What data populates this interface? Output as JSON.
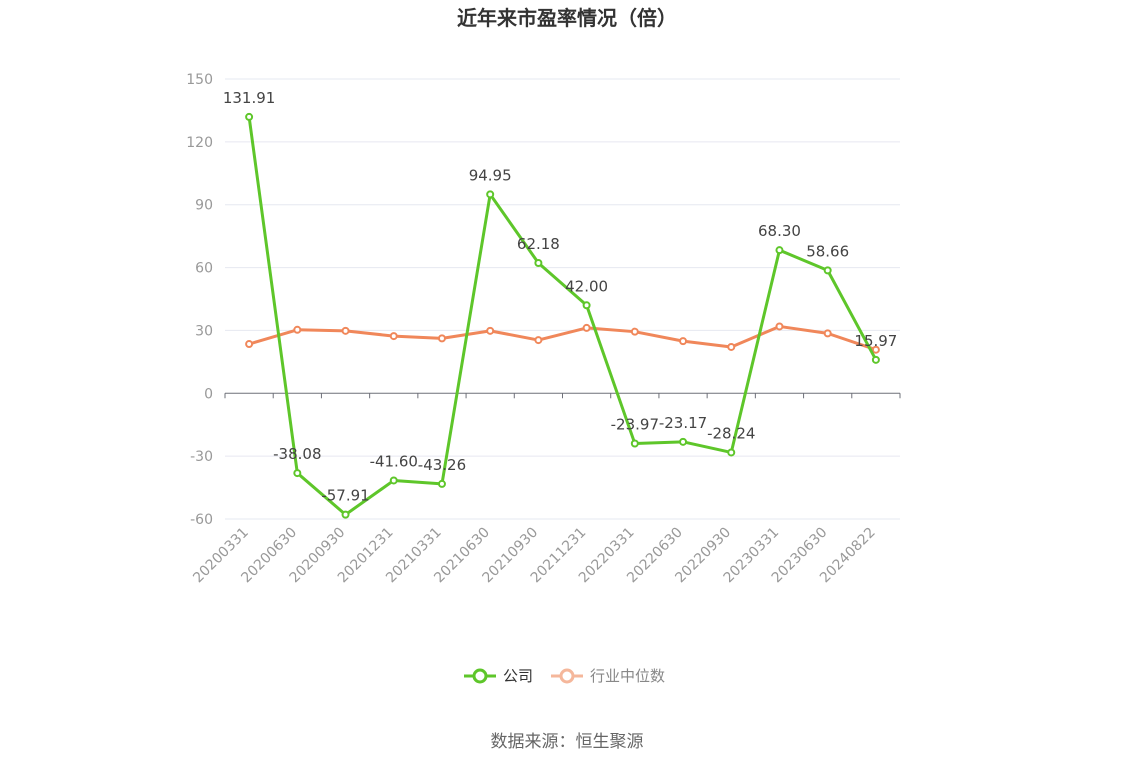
{
  "title": "近年来市盈率情况（倍）",
  "source": "数据来源：恒生聚源",
  "chart_data": {
    "type": "line",
    "title": "近年来市盈率情况（倍）",
    "categories": [
      "20200331",
      "20200630",
      "20200930",
      "20201231",
      "20210331",
      "20210630",
      "20210930",
      "20211231",
      "20220331",
      "20220630",
      "20220930",
      "20230331",
      "20230630",
      "20240822"
    ],
    "ylim": [
      -60,
      150
    ],
    "yticks": [
      -60,
      -30,
      0,
      30,
      60,
      90,
      120,
      150
    ],
    "grid": true,
    "legend_position": "bottom-center",
    "series": [
      {
        "name": "公司",
        "color": "#5ec62a",
        "values": [
          131.91,
          -38.08,
          -57.91,
          -41.6,
          -43.26,
          94.95,
          62.18,
          42.0,
          -23.97,
          -23.17,
          -28.24,
          68.3,
          58.66,
          15.97
        ],
        "labels": [
          "131.91",
          "-38.08",
          "-57.91",
          "-41.60",
          "-43.26",
          "94.95",
          "62.18",
          "42.00",
          "-23.97",
          "-23.17",
          "-28.24",
          "68.30",
          "58.66",
          "15.97"
        ]
      },
      {
        "name": "行业中位数",
        "color": "#f0875a",
        "legend_color": "#f5b79b",
        "values": [
          23.5,
          30.3,
          29.8,
          27.3,
          26.2,
          29.8,
          25.4,
          31.2,
          29.4,
          24.9,
          22.1,
          31.9,
          28.6,
          20.8
        ]
      }
    ]
  }
}
